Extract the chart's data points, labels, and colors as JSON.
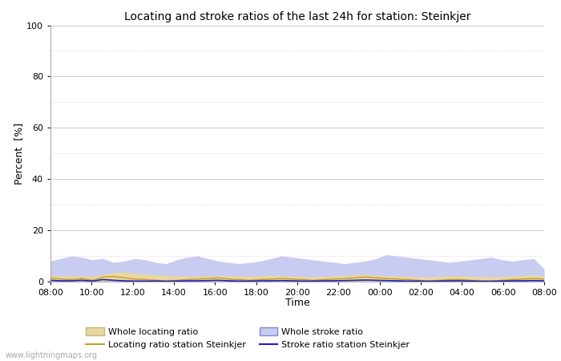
{
  "title": "Locating and stroke ratios of the last 24h for station: Steinkjer",
  "xlabel": "Time",
  "ylabel": "Percent  [%]",
  "watermark": "www.lightningmaps.org",
  "ylim": [
    0,
    100
  ],
  "yticks": [
    0,
    20,
    40,
    60,
    80,
    100
  ],
  "yminor_ticks": [
    10,
    30,
    50,
    70,
    90
  ],
  "xtick_labels": [
    "08:00",
    "10:00",
    "12:00",
    "14:00",
    "16:00",
    "18:00",
    "20:00",
    "22:00",
    "00:00",
    "02:00",
    "04:00",
    "06:00",
    "08:00"
  ],
  "bg_color": "#ffffff",
  "plot_bg_color": "#ffffff",
  "grid_color": "#cccccc",
  "minor_grid_color": "#e0e0e0",
  "whole_locating_fill": "#e8d8a0",
  "whole_locating_line": "#c8b870",
  "whole_stroke_fill": "#c8ccf0",
  "whole_stroke_line": "#8088d0",
  "station_locating_line": "#c8a020",
  "station_stroke_line": "#2020c0",
  "legend_labels_row1": [
    "Whole locating ratio",
    "Locating ratio station Steinkjer"
  ],
  "legend_labels_row2": [
    "Whole stroke ratio",
    "Stroke ratio station Steinkjer"
  ],
  "whole_locating_ratio": [
    2.5,
    2.2,
    2.1,
    2.3,
    2.0,
    2.8,
    3.5,
    3.8,
    3.2,
    2.9,
    2.6,
    2.4,
    2.2,
    2.0,
    2.1,
    2.3,
    2.4,
    2.2,
    2.1,
    2.0,
    2.2,
    2.4,
    2.3,
    2.1,
    1.9,
    1.8,
    2.0,
    2.2,
    2.4,
    2.6,
    2.8,
    2.5,
    2.3,
    2.1,
    2.0,
    1.9,
    1.8,
    2.0,
    2.2,
    2.1,
    2.0,
    1.9,
    1.8,
    2.0,
    2.2,
    2.4,
    2.5,
    2.3
  ],
  "whole_stroke_ratio": [
    8.0,
    9.0,
    10.0,
    9.5,
    8.5,
    9.0,
    7.5,
    8.0,
    9.0,
    8.5,
    7.5,
    7.0,
    8.5,
    9.5,
    10.0,
    9.0,
    8.0,
    7.5,
    7.0,
    7.5,
    8.0,
    9.0,
    10.0,
    9.5,
    9.0,
    8.5,
    8.0,
    7.5,
    7.0,
    7.5,
    8.0,
    9.0,
    10.5,
    10.0,
    9.5,
    9.0,
    8.5,
    8.0,
    7.5,
    8.0,
    8.5,
    9.0,
    9.5,
    8.5,
    8.0,
    8.5,
    9.0,
    5.0
  ],
  "station_locating_ratio": [
    1.5,
    1.0,
    0.8,
    1.2,
    0.5,
    1.8,
    2.0,
    1.5,
    1.0,
    0.8,
    0.5,
    0.3,
    0.5,
    0.8,
    1.0,
    1.2,
    1.5,
    1.0,
    0.8,
    0.5,
    0.8,
    1.0,
    1.2,
    1.0,
    0.8,
    0.5,
    0.8,
    1.0,
    1.2,
    1.5,
    1.8,
    1.5,
    1.2,
    1.0,
    0.8,
    0.5,
    0.3,
    0.5,
    0.8,
    0.8,
    0.5,
    0.3,
    0.3,
    0.5,
    0.8,
    1.0,
    1.2,
    1.0
  ],
  "station_stroke_ratio": [
    0.5,
    0.3,
    0.3,
    0.5,
    0.2,
    0.8,
    0.5,
    0.3,
    0.2,
    0.2,
    0.2,
    0.1,
    0.2,
    0.3,
    0.3,
    0.4,
    0.5,
    0.3,
    0.2,
    0.2,
    0.3,
    0.3,
    0.4,
    0.3,
    0.2,
    0.2,
    0.3,
    0.3,
    0.4,
    0.5,
    0.6,
    0.5,
    0.4,
    0.3,
    0.2,
    0.2,
    0.1,
    0.2,
    0.3,
    0.3,
    0.2,
    0.1,
    0.1,
    0.2,
    0.3,
    0.3,
    0.4,
    0.3
  ]
}
